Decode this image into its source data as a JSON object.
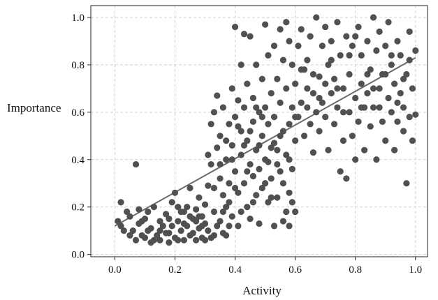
{
  "chart_data": {
    "type": "scatter",
    "xlabel": "Activity",
    "ylabel": "Importance",
    "xlim": [
      -0.08,
      1.04
    ],
    "ylim": [
      -0.01,
      1.05
    ],
    "x_ticks": [
      "0.0",
      "0.2",
      "0.4",
      "0.6",
      "0.8",
      "1.0"
    ],
    "y_ticks": [
      "0.0",
      "0.2",
      "0.4",
      "0.6",
      "0.8",
      "1.0"
    ],
    "grid": true,
    "trendline": {
      "x": [
        0.0,
        1.0
      ],
      "y": [
        0.12,
        0.83
      ]
    },
    "colors": {
      "point": "#505050",
      "trendline": "#6a6a6a",
      "grid": "#d2d2d2",
      "axis": "#222222"
    },
    "points": [
      [
        0.01,
        0.14
      ],
      [
        0.02,
        0.22
      ],
      [
        0.02,
        0.12
      ],
      [
        0.03,
        0.1
      ],
      [
        0.04,
        0.18
      ],
      [
        0.05,
        0.16
      ],
      [
        0.06,
        0.1
      ],
      [
        0.07,
        0.06
      ],
      [
        0.07,
        0.38
      ],
      [
        0.08,
        0.13
      ],
      [
        0.08,
        0.19
      ],
      [
        0.09,
        0.08
      ],
      [
        0.1,
        0.07
      ],
      [
        0.1,
        0.15
      ],
      [
        0.11,
        0.18
      ],
      [
        0.12,
        0.05
      ],
      [
        0.12,
        0.11
      ],
      [
        0.13,
        0.2
      ],
      [
        0.14,
        0.08
      ],
      [
        0.15,
        0.06
      ],
      [
        0.15,
        0.14
      ],
      [
        0.16,
        0.12
      ],
      [
        0.17,
        0.17
      ],
      [
        0.18,
        0.05
      ],
      [
        0.18,
        0.09
      ],
      [
        0.19,
        0.22
      ],
      [
        0.2,
        0.07
      ],
      [
        0.2,
        0.26
      ],
      [
        0.21,
        0.14
      ],
      [
        0.22,
        0.1
      ],
      [
        0.22,
        0.18
      ],
      [
        0.23,
        0.06
      ],
      [
        0.24,
        0.2
      ],
      [
        0.24,
        0.12
      ],
      [
        0.25,
        0.08
      ],
      [
        0.25,
        0.28
      ],
      [
        0.26,
        0.15
      ],
      [
        0.27,
        0.06
      ],
      [
        0.27,
        0.19
      ],
      [
        0.28,
        0.11
      ],
      [
        0.28,
        0.24
      ],
      [
        0.29,
        0.07
      ],
      [
        0.29,
        0.16
      ],
      [
        0.3,
        0.13
      ],
      [
        0.3,
        0.21
      ],
      [
        0.3,
        0.06
      ],
      [
        0.31,
        0.29
      ],
      [
        0.31,
        0.1
      ],
      [
        0.32,
        0.55
      ],
      [
        0.32,
        0.38
      ],
      [
        0.33,
        0.6
      ],
      [
        0.33,
        0.18
      ],
      [
        0.33,
        0.08
      ],
      [
        0.34,
        0.45
      ],
      [
        0.34,
        0.67
      ],
      [
        0.35,
        0.14
      ],
      [
        0.35,
        0.32
      ],
      [
        0.35,
        0.5
      ],
      [
        0.36,
        0.09
      ],
      [
        0.36,
        0.25
      ],
      [
        0.36,
        0.62
      ],
      [
        0.37,
        0.2
      ],
      [
        0.37,
        0.4
      ],
      [
        0.38,
        0.12
      ],
      [
        0.38,
        0.55
      ],
      [
        0.38,
        0.3
      ],
      [
        0.39,
        0.46
      ],
      [
        0.39,
        0.7
      ],
      [
        0.39,
        0.16
      ],
      [
        0.4,
        0.96
      ],
      [
        0.4,
        0.35
      ],
      [
        0.4,
        0.58
      ],
      [
        0.41,
        0.26
      ],
      [
        0.41,
        0.65
      ],
      [
        0.41,
        0.12
      ],
      [
        0.42,
        0.42
      ],
      [
        0.42,
        0.8
      ],
      [
        0.42,
        0.52
      ],
      [
        0.43,
        0.93
      ],
      [
        0.43,
        0.3
      ],
      [
        0.43,
        0.62
      ],
      [
        0.44,
        0.2
      ],
      [
        0.44,
        0.48
      ],
      [
        0.44,
        0.72
      ],
      [
        0.45,
        0.38
      ],
      [
        0.45,
        0.92
      ],
      [
        0.45,
        0.15
      ],
      [
        0.46,
        0.56
      ],
      [
        0.46,
        0.33
      ],
      [
        0.46,
        0.66
      ],
      [
        0.47,
        0.44
      ],
      [
        0.47,
        0.25
      ],
      [
        0.47,
        0.8
      ],
      [
        0.48,
        0.6
      ],
      [
        0.48,
        0.36
      ],
      [
        0.48,
        0.13
      ],
      [
        0.49,
        0.5
      ],
      [
        0.49,
        0.74
      ],
      [
        0.49,
        0.28
      ],
      [
        0.5,
        0.97
      ],
      [
        0.5,
        0.4
      ],
      [
        0.5,
        0.62
      ],
      [
        0.51,
        0.22
      ],
      [
        0.51,
        0.55
      ],
      [
        0.51,
        0.84
      ],
      [
        0.52,
        0.32
      ],
      [
        0.52,
        0.68
      ],
      [
        0.52,
        0.45
      ],
      [
        0.53,
        0.12
      ],
      [
        0.53,
        0.58
      ],
      [
        0.53,
        0.88
      ],
      [
        0.54,
        0.38
      ],
      [
        0.54,
        0.74
      ],
      [
        0.54,
        0.24
      ],
      [
        0.55,
        0.95
      ],
      [
        0.55,
        0.5
      ],
      [
        0.55,
        0.64
      ],
      [
        0.56,
        0.3
      ],
      [
        0.56,
        0.82
      ],
      [
        0.56,
        0.14
      ],
      [
        0.57,
        0.42
      ],
      [
        0.57,
        0.7
      ],
      [
        0.57,
        0.98
      ],
      [
        0.58,
        0.55
      ],
      [
        0.58,
        0.26
      ],
      [
        0.58,
        0.9
      ],
      [
        0.59,
        0.36
      ],
      [
        0.59,
        0.62
      ],
      [
        0.59,
        0.8
      ],
      [
        0.6,
        0.48
      ],
      [
        0.6,
        0.18
      ],
      [
        0.6,
        0.72
      ],
      [
        0.61,
        0.58
      ],
      [
        0.61,
        0.88
      ],
      [
        0.62,
        0.64
      ],
      [
        0.62,
        0.95
      ],
      [
        0.63,
        0.5
      ],
      [
        0.63,
        0.78
      ],
      [
        0.64,
        0.62
      ],
      [
        0.64,
        0.7
      ],
      [
        0.65,
        0.55
      ],
      [
        0.65,
        0.92
      ],
      [
        0.66,
        0.43
      ],
      [
        0.66,
        0.68
      ],
      [
        0.67,
        1.0
      ],
      [
        0.67,
        0.6
      ],
      [
        0.68,
        0.75
      ],
      [
        0.68,
        0.52
      ],
      [
        0.69,
        0.88
      ],
      [
        0.69,
        0.64
      ],
      [
        0.7,
        0.96
      ],
      [
        0.7,
        0.58
      ],
      [
        0.71,
        0.8
      ],
      [
        0.71,
        0.44
      ],
      [
        0.72,
        0.68
      ],
      [
        0.72,
        0.9
      ],
      [
        0.73,
        0.55
      ],
      [
        0.73,
        0.74
      ],
      [
        0.74,
        0.62
      ],
      [
        0.74,
        0.98
      ],
      [
        0.75,
        0.35
      ],
      [
        0.75,
        0.84
      ],
      [
        0.76,
        0.7
      ],
      [
        0.76,
        0.48
      ],
      [
        0.77,
        0.92
      ],
      [
        0.77,
        0.32
      ],
      [
        0.78,
        0.6
      ],
      [
        0.78,
        0.76
      ],
      [
        0.79,
        0.5
      ],
      [
        0.79,
        0.88
      ],
      [
        0.8,
        0.66
      ],
      [
        0.8,
        0.4
      ],
      [
        0.81,
        0.96
      ],
      [
        0.81,
        0.56
      ],
      [
        0.82,
        0.72
      ],
      [
        0.82,
        0.84
      ],
      [
        0.83,
        0.62
      ],
      [
        0.83,
        0.44
      ],
      [
        0.84,
        0.9
      ],
      [
        0.84,
        0.68
      ],
      [
        0.85,
        0.54
      ],
      [
        0.85,
        0.78
      ],
      [
        0.86,
        1.0
      ],
      [
        0.86,
        0.62
      ],
      [
        0.87,
        0.4
      ],
      [
        0.87,
        0.86
      ],
      [
        0.88,
        0.7
      ],
      [
        0.88,
        0.94
      ],
      [
        0.89,
        0.56
      ],
      [
        0.89,
        0.76
      ],
      [
        0.9,
        0.48
      ],
      [
        0.9,
        0.88
      ],
      [
        0.91,
        0.66
      ],
      [
        0.91,
        0.98
      ],
      [
        0.92,
        0.6
      ],
      [
        0.92,
        0.8
      ],
      [
        0.93,
        0.44
      ],
      [
        0.93,
        0.72
      ],
      [
        0.94,
        0.9
      ],
      [
        0.94,
        0.56
      ],
      [
        0.95,
        0.68
      ],
      [
        0.95,
        0.84
      ],
      [
        0.96,
        0.52
      ],
      [
        0.96,
        0.62
      ],
      [
        0.97,
        0.3
      ],
      [
        0.97,
        0.76
      ],
      [
        0.98,
        0.94
      ],
      [
        0.98,
        0.58
      ],
      [
        0.99,
        0.48
      ],
      [
        0.99,
        0.7
      ],
      [
        1.0,
        0.86
      ],
      [
        1.0,
        0.59
      ],
      [
        0.15,
        0.1
      ],
      [
        0.18,
        0.15
      ],
      [
        0.21,
        0.06
      ],
      [
        0.23,
        0.13
      ],
      [
        0.26,
        0.09
      ],
      [
        0.28,
        0.16
      ],
      [
        0.32,
        0.07
      ],
      [
        0.34,
        0.12
      ],
      [
        0.37,
        0.08
      ],
      [
        0.36,
        0.18
      ],
      [
        0.38,
        0.22
      ],
      [
        0.4,
        0.28
      ],
      [
        0.42,
        0.18
      ],
      [
        0.44,
        0.35
      ],
      [
        0.46,
        0.22
      ],
      [
        0.48,
        0.46
      ],
      [
        0.5,
        0.3
      ],
      [
        0.52,
        0.24
      ],
      [
        0.54,
        0.44
      ],
      [
        0.56,
        0.52
      ],
      [
        0.58,
        0.4
      ],
      [
        0.6,
        0.58
      ],
      [
        0.62,
        0.78
      ],
      [
        0.64,
        0.82
      ],
      [
        0.66,
        0.76
      ],
      [
        0.68,
        0.66
      ],
      [
        0.7,
        0.72
      ],
      [
        0.72,
        0.82
      ],
      [
        0.74,
        0.7
      ],
      [
        0.76,
        0.6
      ],
      [
        0.78,
        0.84
      ],
      [
        0.8,
        0.92
      ],
      [
        0.82,
        0.62
      ],
      [
        0.84,
        0.76
      ],
      [
        0.86,
        0.7
      ],
      [
        0.88,
        0.62
      ],
      [
        0.9,
        0.76
      ],
      [
        0.92,
        0.84
      ],
      [
        0.94,
        0.64
      ],
      [
        0.96,
        0.74
      ],
      [
        0.98,
        0.82
      ],
      [
        0.55,
        0.35
      ],
      [
        0.53,
        0.47
      ],
      [
        0.51,
        0.39
      ],
      [
        0.49,
        0.58
      ],
      [
        0.47,
        0.62
      ],
      [
        0.45,
        0.52
      ],
      [
        0.43,
        0.46
      ],
      [
        0.41,
        0.54
      ],
      [
        0.39,
        0.4
      ],
      [
        0.37,
        0.48
      ],
      [
        0.35,
        0.38
      ],
      [
        0.33,
        0.28
      ],
      [
        0.31,
        0.42
      ],
      [
        0.29,
        0.12
      ],
      [
        0.27,
        0.14
      ],
      [
        0.25,
        0.16
      ],
      [
        0.23,
        0.18
      ],
      [
        0.21,
        0.2
      ],
      [
        0.19,
        0.12
      ],
      [
        0.17,
        0.09
      ],
      [
        0.13,
        0.06
      ],
      [
        0.11,
        0.1
      ],
      [
        0.09,
        0.14
      ],
      [
        0.05,
        0.08
      ],
      [
        0.58,
        0.12
      ],
      [
        0.59,
        0.22
      ],
      [
        0.57,
        0.18
      ]
    ]
  }
}
